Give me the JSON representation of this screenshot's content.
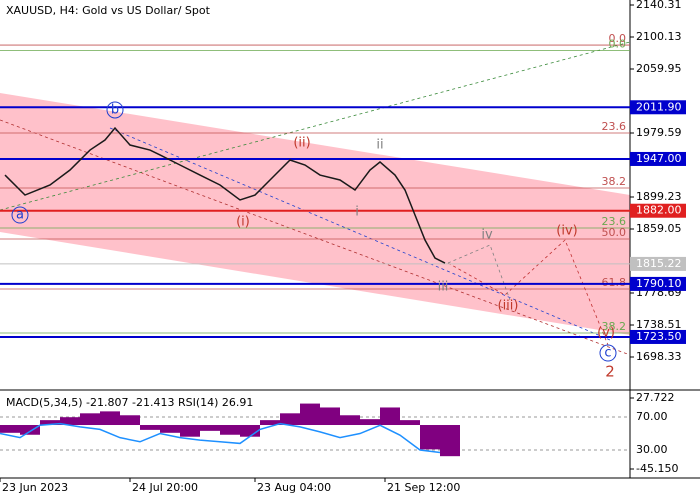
{
  "chart_data": [
    {
      "type": "line",
      "title": "XAUUSD, H4:  Gold vs US Dollar/ Spot",
      "x": [
        1,
        5,
        10,
        14,
        18,
        21,
        23,
        26,
        30,
        32,
        36,
        40,
        44,
        48,
        51,
        54,
        58,
        61,
        64,
        68,
        71,
        74,
        76,
        79,
        81,
        83,
        85,
        87,
        89
      ],
      "series": [
        {
          "color": "#1a1a1a",
          "values": [
            1926.8,
            1901.7,
            1914.3,
            1933.1,
            1958.2,
            1970.8,
            1985.8,
            1964.5,
            1958.2,
            1952,
            1939.4,
            1926.8,
            1914.3,
            1895.5,
            1901.7,
            1920.6,
            1945.7,
            1939.4,
            1926.8,
            1920.6,
            1908,
            1933.1,
            1943.2,
            1926.8,
            1908,
            1876.6,
            1845.2,
            1822.6,
            1816.3
          ]
        }
      ],
      "xlim": [
        0,
        126
      ],
      "ylim": [
        1656.9,
        2146.6
      ],
      "xticks": [
        {
          "value": 0,
          "label": "23 Jun 2023"
        },
        {
          "value": 26,
          "label": "24 Jul 20:00"
        },
        {
          "value": 51,
          "label": "23 Aug 04:00"
        },
        {
          "value": 77,
          "label": "21 Sep 12:00"
        }
      ],
      "yticks": [
        2140.31,
        2100.13,
        2059.95,
        1979.59,
        1899.23,
        1859.05,
        1778.69,
        1738.51,
        1698.33
      ],
      "price_levels": [
        {
          "value": 2011.9,
          "label": "2011.90",
          "color": "#0000cd"
        },
        {
          "value": 1947,
          "label": "1947.00",
          "color": "#0000cd"
        },
        {
          "value": 1882,
          "label": "1882.00",
          "color": "#e02020"
        },
        {
          "value": 1815.22,
          "label": "1815.22",
          "color": "#c0c0c0"
        },
        {
          "value": 1790.1,
          "label": "1790.10",
          "color": "#0000cd"
        },
        {
          "value": 1723.5,
          "label": "1723.50",
          "color": "#0000cd"
        }
      ],
      "fib_levels": [
        {
          "label": "0.0",
          "value": 2090,
          "color": "#c05050"
        },
        {
          "label": "0.0",
          "value": 2083,
          "color": "#6aa84f"
        },
        {
          "label": "23.6",
          "value": 1979.6,
          "color": "#c05050"
        },
        {
          "label": "38.2",
          "value": 1910.5,
          "color": "#c05050"
        },
        {
          "label": "23.6",
          "value": 1860.3,
          "color": "#6aa84f"
        },
        {
          "label": "50.0",
          "value": 1846.5,
          "color": "#c05050"
        },
        {
          "label": "61.8",
          "value": 1783.7,
          "color": "#c05050"
        },
        {
          "label": "38.2",
          "value": 1728.5,
          "color": "#6aa84f"
        }
      ],
      "annotations": [
        {
          "text": "a",
          "x": 4,
          "y": 1876.6,
          "color": "#1e3fd0",
          "circled": true
        },
        {
          "text": "b",
          "x": 23,
          "y": 2008.5,
          "color": "#1e3fd0",
          "circled": true
        },
        {
          "text": "c",
          "x": 121.6,
          "y": 1703.3,
          "color": "#1e3fd0",
          "circled": true
        },
        {
          "text": "(i)",
          "x": 48.6,
          "y": 1867.8,
          "color": "#c0392b",
          "circled": false
        },
        {
          "text": "(ii)",
          "x": 60.4,
          "y": 1967,
          "color": "#c0392b",
          "circled": false
        },
        {
          "text": "(iii)",
          "x": 101.6,
          "y": 1762.4,
          "color": "#c0392b",
          "circled": false
        },
        {
          "text": "(iv)",
          "x": 113.4,
          "y": 1856.5,
          "color": "#c0392b",
          "circled": false
        },
        {
          "text": "(v)",
          "x": 121.2,
          "y": 1728.5,
          "color": "#c0392b",
          "circled": false
        },
        {
          "text": "i",
          "x": 71.4,
          "y": 1880.4,
          "color": "#808080",
          "circled": false
        },
        {
          "text": "ii",
          "x": 76,
          "y": 1964.5,
          "color": "#808080",
          "circled": false
        },
        {
          "text": "iii",
          "x": 88.6,
          "y": 1786.2,
          "color": "#808080",
          "circled": false
        },
        {
          "text": "iv",
          "x": 97.4,
          "y": 1851.5,
          "color": "#808080",
          "circled": false
        },
        {
          "text": "2",
          "x": 122,
          "y": 1679.5,
          "color": "#c0392b",
          "circled": false
        }
      ]
    },
    {
      "type": "macd",
      "title": "MACD(5,34,5) -21.807 -21.413 RSI(14) 26.91",
      "x": [
        0,
        4,
        8,
        12,
        16,
        20,
        24,
        28,
        32,
        36,
        40,
        44,
        48,
        52,
        56,
        60,
        64,
        68,
        72,
        76,
        80,
        84,
        88
      ],
      "series": [
        {
          "color": "#800080",
          "values": [
            -8,
            -10,
            5,
            8,
            12,
            14,
            10,
            -5,
            -8,
            -12,
            -6,
            -10,
            -12,
            5,
            12,
            22,
            18,
            10,
            6,
            18,
            5,
            -25,
            -32
          ]
        },
        {
          "color": "#1e90ff",
          "axis": "y2",
          "values": [
            50,
            45,
            60,
            62,
            58,
            55,
            45,
            40,
            50,
            45,
            42,
            40,
            38,
            55,
            62,
            58,
            52,
            45,
            50,
            60,
            48,
            30,
            27
          ]
        }
      ],
      "ylim": [
        -54.39,
        33.88
      ],
      "yticks": [
        27.722,
        {
          "value": -45.15,
          "label": "-45.150"
        }
      ],
      "y2lim": [
        -3.9,
        100.3
      ],
      "y2ticks": [
        {
          "value": 70,
          "label": "70.00"
        },
        {
          "value": 30,
          "label": "30.00"
        }
      ]
    }
  ]
}
